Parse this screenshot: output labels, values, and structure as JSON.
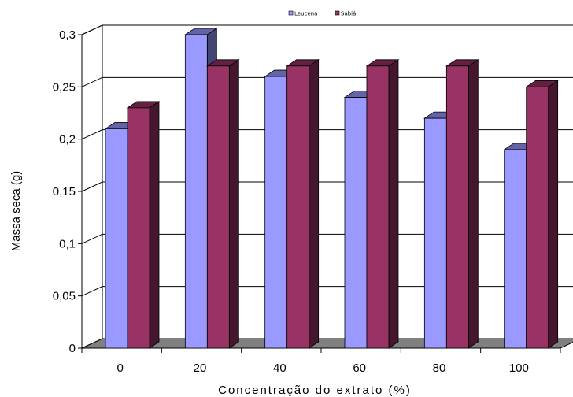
{
  "chart_data": {
    "type": "bar",
    "categories": [
      "0",
      "20",
      "40",
      "60",
      "80",
      "100"
    ],
    "series": [
      {
        "name": "Leucena",
        "values": [
          0.21,
          0.3,
          0.26,
          0.24,
          0.22,
          0.19
        ],
        "color": "#9999ff"
      },
      {
        "name": "Sabiá",
        "values": [
          0.23,
          0.27,
          0.27,
          0.27,
          0.27,
          0.25
        ],
        "color": "#993366"
      }
    ],
    "y_ticks": [
      "0",
      "0,05",
      "0,1",
      "0,15",
      "0,2",
      "0,25",
      "0,3"
    ],
    "xlabel": "Concentração do extrato (%)",
    "ylabel": "Massa seca (g)",
    "ylim": [
      0,
      0.3
    ],
    "grid": true,
    "legend_position": "top-center",
    "style": "3d-clustered-column"
  }
}
